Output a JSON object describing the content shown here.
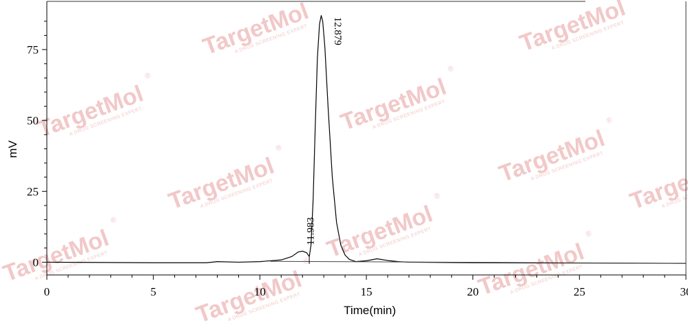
{
  "chart_data": {
    "type": "line",
    "title": "",
    "xlabel": "Time(min)",
    "ylabel": "mV",
    "xlim": [
      0,
      30
    ],
    "ylim": [
      -4.5,
      92
    ],
    "x_ticks": [
      0,
      5,
      10,
      15,
      20,
      25,
      30
    ],
    "y_ticks": [
      0,
      25,
      50,
      75
    ],
    "grid": false,
    "series": [
      {
        "x": [
          0,
          5,
          7.5,
          8,
          9,
          10,
          11,
          11.5,
          11.8,
          12.0,
          12.2,
          12.32,
          12.4,
          12.5,
          12.6,
          12.7,
          12.8,
          12.88,
          12.95,
          13.05,
          13.2,
          13.4,
          13.6,
          13.8,
          14.0,
          14.2,
          14.5,
          15.0,
          15.5,
          16.0,
          16.5,
          17,
          20,
          25,
          30
        ],
        "y": [
          0,
          -0.2,
          -0.2,
          0.2,
          0,
          0.2,
          0.8,
          2.0,
          3.6,
          3.9,
          3.3,
          2.0,
          6.0,
          22.0,
          48.0,
          72.0,
          84.0,
          87.0,
          85.0,
          76.0,
          55.0,
          30.0,
          14.0,
          6.0,
          2.5,
          1.0,
          0.2,
          0.5,
          1.2,
          0.6,
          0.2,
          0,
          -0.2,
          -0.3,
          -0.4
        ]
      }
    ],
    "peaks": [
      {
        "time": 11.983,
        "label": "11.983"
      },
      {
        "time": 12.879,
        "label": "12.879"
      }
    ]
  },
  "watermark": {
    "brand": "TargetMol",
    "tagline": "A DRUG SCREENING EXPERT",
    "registered": "®"
  },
  "colors": {
    "line": "#000000",
    "baseline": "#444444",
    "watermark": "#f2c8c8"
  }
}
